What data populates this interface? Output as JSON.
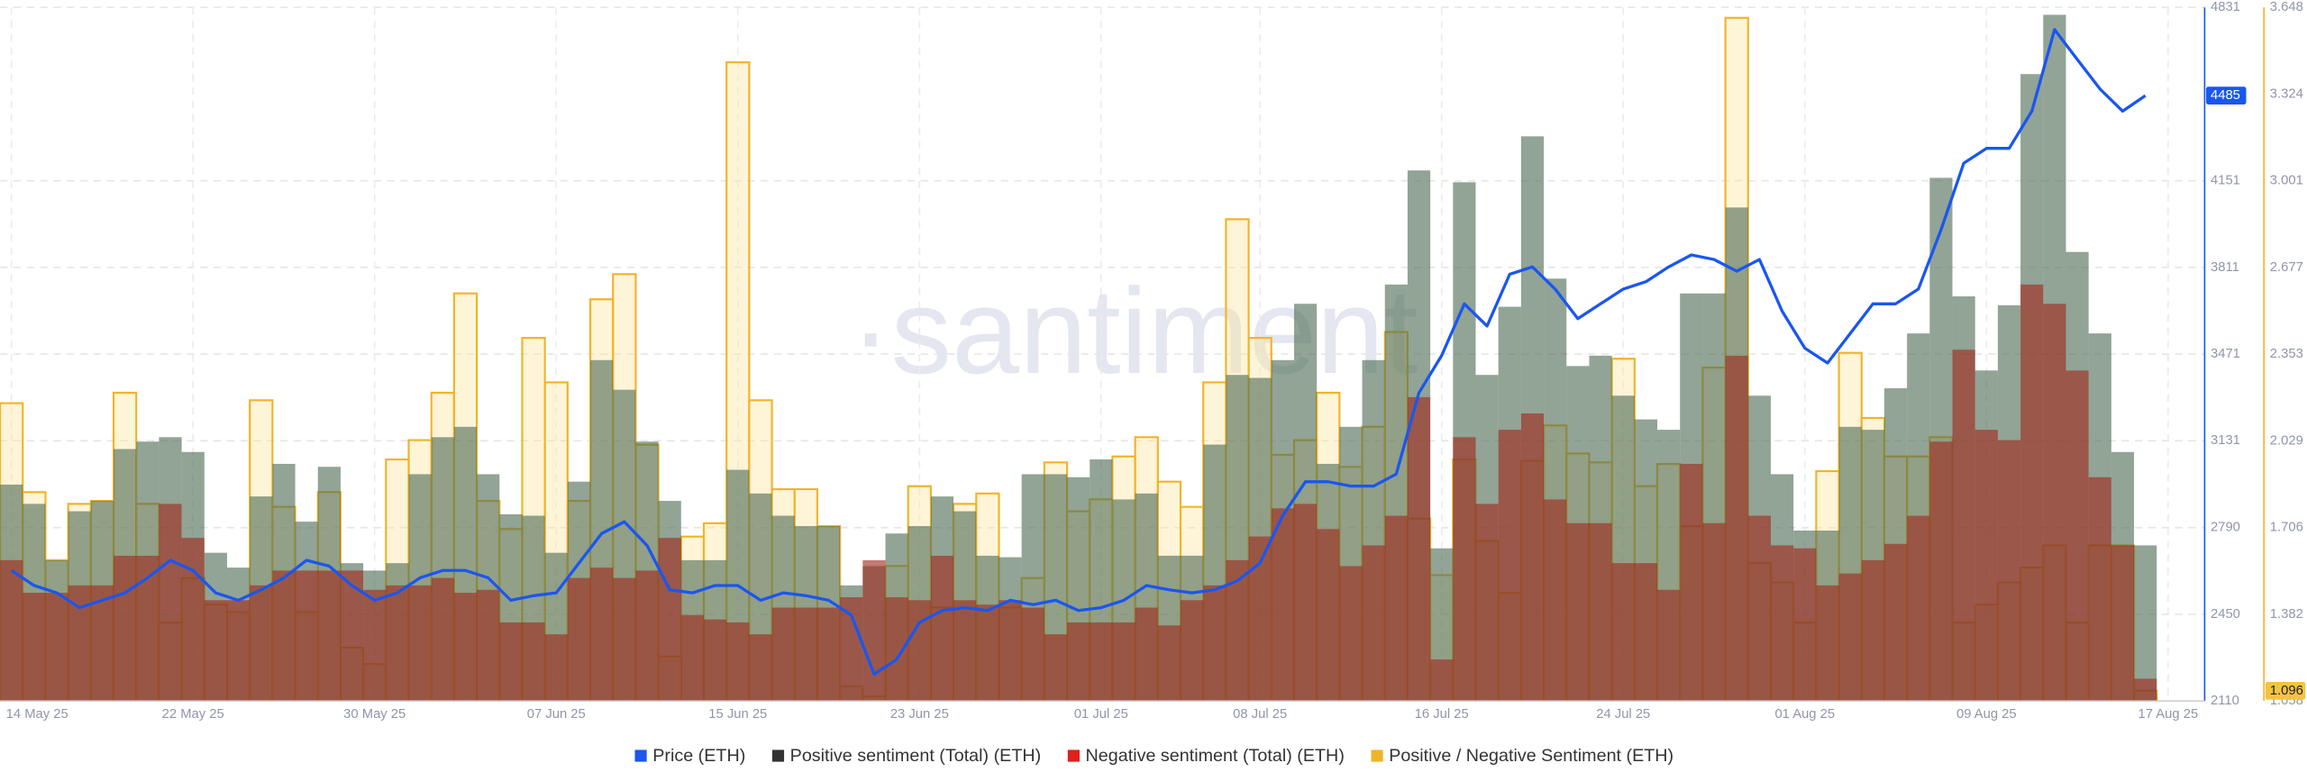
{
  "chart_data": {
    "type": "combo",
    "watermark": "·santiment",
    "categories": [
      "14 May 25",
      null,
      null,
      null,
      null,
      null,
      null,
      null,
      "22 May 25",
      null,
      null,
      null,
      null,
      null,
      null,
      null,
      "30 May 25",
      null,
      null,
      null,
      null,
      null,
      null,
      null,
      "07 Jun 25",
      null,
      null,
      null,
      null,
      null,
      null,
      null,
      "15 Jun 25",
      null,
      null,
      null,
      null,
      null,
      null,
      null,
      "23 Jun 25",
      null,
      null,
      null,
      null,
      null,
      null,
      null,
      "01 Jul 25",
      null,
      null,
      null,
      null,
      null,
      null,
      "08 Jul 25",
      null,
      null,
      null,
      null,
      null,
      null,
      null,
      "16 Jul 25",
      null,
      null,
      null,
      null,
      null,
      null,
      null,
      "24 Jul 25",
      null,
      null,
      null,
      null,
      null,
      null,
      null,
      "01 Aug 25",
      null,
      null,
      null,
      null,
      null,
      null,
      null,
      "09 Aug 25",
      null,
      null,
      null,
      null,
      null,
      null,
      null,
      "17 Aug 25"
    ],
    "ylim": [
      2110,
      4831
    ],
    "yticks": [
      2110,
      2450,
      2790,
      3131,
      3471,
      3811,
      4151,
      4831
    ],
    "y2lim": [
      1.058,
      3.648
    ],
    "y2ticks": [
      1.058,
      1.382,
      1.706,
      2.029,
      2.353,
      2.677,
      3.001,
      3.324,
      3.648
    ],
    "y3lim": [
      0,
      468
    ],
    "grid": true,
    "legend": "bottom",
    "series": [
      {
        "name": "Price (ETH)",
        "color": "#1a56f0",
        "axis": "y",
        "kind": "line",
        "values": [
          2622,
          2563,
          2534,
          2476,
          2505,
          2534,
          2593,
          2662,
          2622,
          2534,
          2505,
          2546,
          2593,
          2662,
          2639,
          2563,
          2505,
          2534,
          2593,
          2622,
          2622,
          2593,
          2505,
          2523,
          2534,
          2651,
          2767,
          2813,
          2720,
          2546,
          2534,
          2563,
          2563,
          2505,
          2534,
          2523,
          2505,
          2447,
          2215,
          2273,
          2418,
          2465,
          2476,
          2465,
          2505,
          2488,
          2505,
          2465,
          2476,
          2505,
          2563,
          2546,
          2534,
          2546,
          2581,
          2651,
          2837,
          2970,
          2970,
          2953,
          2953,
          3000,
          3319,
          3465,
          3668,
          3581,
          3784,
          3813,
          3726,
          3610,
          3668,
          3726,
          3755,
          3813,
          3860,
          3842,
          3796,
          3842,
          3639,
          3494,
          3436,
          3552,
          3668,
          3668,
          3726,
          3959,
          4220,
          4278,
          4278,
          4424,
          4744,
          4627,
          4511,
          4424,
          4485,
          null
        ]
      },
      {
        "name": "Positive sentiment (Total) (ETH)",
        "color": "#333333",
        "fill": "rgba(78,108,84,0.62)",
        "axis": "y3",
        "kind": "step",
        "values": [
          146,
          133,
          95,
          128,
          135,
          170,
          175,
          178,
          168,
          100,
          90,
          138,
          160,
          121,
          158,
          93,
          88,
          93,
          153,
          178,
          185,
          153,
          126,
          125,
          100,
          148,
          230,
          210,
          175,
          135,
          95,
          95,
          156,
          140,
          125,
          118,
          118,
          78,
          91,
          113,
          118,
          138,
          128,
          98,
          97,
          153,
          153,
          151,
          163,
          136,
          140,
          98,
          98,
          173,
          220,
          218,
          230,
          268,
          160,
          185,
          230,
          281,
          358,
          103,
          350,
          220,
          266,
          381,
          285,
          226,
          233,
          206,
          190,
          183,
          275,
          275,
          333,
          206,
          153,
          115,
          115,
          185,
          183,
          211,
          248,
          353,
          273,
          223,
          267,
          423,
          463,
          303,
          248,
          168,
          105,
          null
        ]
      },
      {
        "name": "Negative sentiment (Total) (ETH)",
        "color": "#e0201b",
        "fill": "rgba(160,40,28,0.62)",
        "axis": "y3",
        "kind": "step",
        "values": [
          95,
          73,
          73,
          78,
          78,
          98,
          98,
          133,
          110,
          68,
          68,
          78,
          88,
          88,
          88,
          88,
          75,
          78,
          78,
          83,
          73,
          75,
          53,
          53,
          45,
          83,
          90,
          83,
          88,
          110,
          58,
          55,
          53,
          45,
          63,
          63,
          63,
          70,
          95,
          70,
          68,
          98,
          68,
          65,
          68,
          63,
          45,
          53,
          53,
          53,
          63,
          51,
          68,
          78,
          95,
          111,
          130,
          133,
          116,
          91,
          105,
          125,
          205,
          28,
          178,
          133,
          183,
          194,
          136,
          120,
          120,
          93,
          93,
          75,
          160,
          120,
          233,
          125,
          105,
          103,
          78,
          86,
          95,
          106,
          125,
          175,
          237,
          183,
          176,
          281,
          268,
          223,
          151,
          105,
          15,
          null
        ]
      },
      {
        "name": "Positive / Negative Sentiment (ETH)",
        "color": "#f0b429",
        "fill": "rgba(252,228,160,0.42)",
        "axis": "y2",
        "kind": "step",
        "values": [
          2.17,
          1.838,
          1.584,
          1.794,
          1.805,
          2.209,
          1.794,
          1.351,
          1.517,
          1.418,
          1.39,
          2.181,
          1.783,
          1.39,
          1.838,
          1.257,
          1.196,
          1.96,
          2.032,
          2.209,
          2.58,
          1.805,
          1.7,
          2.414,
          2.248,
          1.805,
          2.558,
          2.652,
          2.015,
          1.224,
          1.672,
          1.722,
          3.443,
          2.181,
          1.849,
          1.849,
          1.711,
          1.113,
          1.075,
          1.562,
          1.86,
          1.407,
          1.794,
          1.833,
          1.407,
          1.517,
          1.949,
          1.766,
          1.811,
          1.971,
          2.043,
          1.877,
          1.783,
          2.248,
          2.857,
          2.414,
          1.977,
          2.032,
          2.209,
          1.932,
          2.082,
          2.436,
          1.739,
          1.528,
          1.96,
          1.656,
          1.462,
          1.955,
          2.087,
          1.982,
          1.949,
          2.336,
          1.86,
          1.943,
          1.711,
          2.303,
          3.609,
          1.573,
          1.501,
          1.351,
          1.916,
          2.358,
          2.115,
          1.971,
          1.971,
          2.043,
          1.351,
          1.418,
          1.501,
          1.556,
          1.639,
          1.351,
          1.639,
          1.639,
          1.096,
          null
        ]
      }
    ]
  }
}
